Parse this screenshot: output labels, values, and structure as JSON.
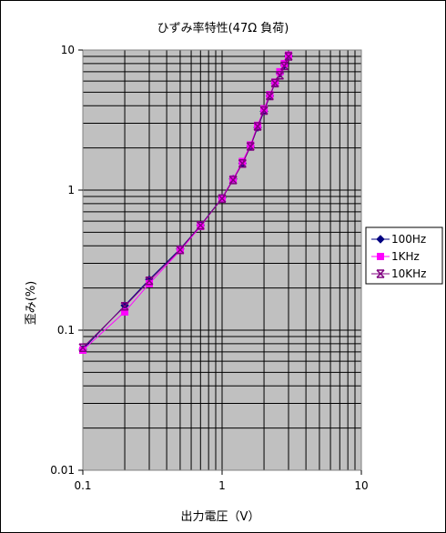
{
  "chart_data": {
    "type": "line",
    "title": "ひずみ率特性(47Ω 負荷)",
    "xlabel": "出力電圧（V）",
    "ylabel": "歪み(%)",
    "xscale": "log",
    "yscale": "log",
    "xlim": [
      0.1,
      10
    ],
    "ylim": [
      0.01,
      10
    ],
    "x_ticks": [
      "0.1",
      "1",
      "10"
    ],
    "y_ticks": [
      "0.01",
      "0.1",
      "1",
      "10"
    ],
    "grid": true,
    "plot_background": "#c0c0c0",
    "legend_position": "right",
    "series": [
      {
        "name": "100Hz",
        "color": "#000080",
        "marker": "diamond",
        "x": [
          0.1,
          0.2,
          0.3,
          0.5,
          0.7,
          1.0,
          1.2,
          1.4,
          1.6,
          1.8,
          2.0,
          2.2,
          2.4,
          2.6,
          2.8,
          3.0
        ],
        "y": [
          0.073,
          0.15,
          0.23,
          0.38,
          0.56,
          0.88,
          1.2,
          1.55,
          2.05,
          2.8,
          3.65,
          4.7,
          5.8,
          6.8,
          7.8,
          9.1
        ]
      },
      {
        "name": "1KHz",
        "color": "#ff00ff",
        "marker": "square",
        "x": [
          0.1,
          0.2,
          0.3,
          0.5,
          0.7,
          1.0,
          1.2,
          1.4,
          1.6,
          1.8,
          2.0,
          2.2,
          2.4,
          2.6,
          2.8,
          3.0
        ],
        "y": [
          0.072,
          0.135,
          0.215,
          0.37,
          0.55,
          0.88,
          1.2,
          1.6,
          2.1,
          2.9,
          3.8,
          4.8,
          5.9,
          7.0,
          8.0,
          9.2
        ]
      },
      {
        "name": "10KHz",
        "color": "#800080",
        "marker": "x-bar",
        "x": [
          0.1,
          0.2,
          0.3,
          0.5,
          0.7,
          1.0,
          1.2,
          1.4,
          1.6,
          1.8,
          2.0,
          2.2,
          2.4,
          2.6,
          2.8,
          3.0
        ],
        "y": [
          0.075,
          0.148,
          0.225,
          0.375,
          0.56,
          0.87,
          1.18,
          1.55,
          2.05,
          2.85,
          3.7,
          4.7,
          5.8,
          6.6,
          7.7,
          9.0
        ]
      }
    ]
  }
}
